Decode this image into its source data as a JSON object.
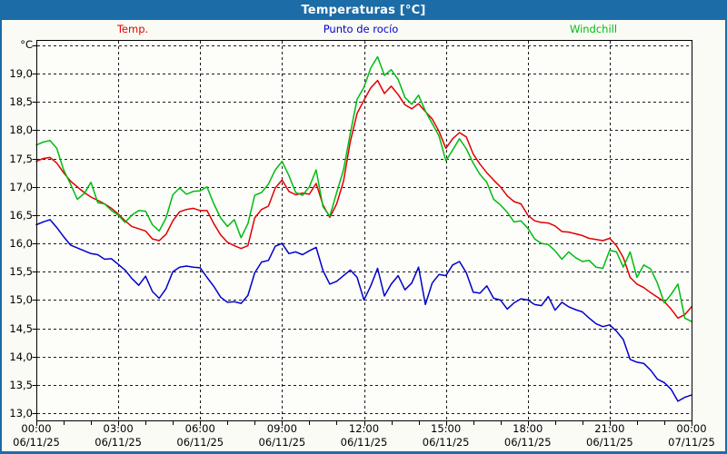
{
  "window": {
    "title": "Temperaturas [°C]"
  },
  "colors": {
    "titlebar": "#1c6ca7",
    "window_border": "#1c6ca7",
    "content_background": "#fafbf4",
    "plot_background": "#fdfdfa",
    "grid": "#1a1a1a",
    "axis": "#000000",
    "temp": "#e00000",
    "dew_point": "#0000cc",
    "windchill": "#00bb11"
  },
  "chart_data": {
    "type": "line",
    "title": "Temperaturas [°C]",
    "y_axis_unit": "°C",
    "legend_position": "top",
    "grid": true,
    "xlim_hours": [
      0,
      24
    ],
    "ylim": [
      12.87,
      19.6
    ],
    "y_grid_min": 13.0,
    "y_grid_max": 19.5,
    "y_grid_step": 0.5,
    "x_grid_step_hours": 3,
    "x_minor_tick_hours": 1,
    "y_ticks": [
      {
        "value": 13.0,
        "label": "13,0"
      },
      {
        "value": 13.5,
        "label": "13,5"
      },
      {
        "value": 14.0,
        "label": "14,0"
      },
      {
        "value": 14.5,
        "label": "14,5"
      },
      {
        "value": 15.0,
        "label": "15,0"
      },
      {
        "value": 15.5,
        "label": "15,5"
      },
      {
        "value": 16.0,
        "label": "16,0"
      },
      {
        "value": 16.5,
        "label": "16,5"
      },
      {
        "value": 17.0,
        "label": "17,0"
      },
      {
        "value": 17.5,
        "label": "17,5"
      },
      {
        "value": 18.0,
        "label": "18,0"
      },
      {
        "value": 18.5,
        "label": "18,5"
      },
      {
        "value": 19.0,
        "label": "19,0"
      }
    ],
    "x_ticks": [
      {
        "hours": 0,
        "time": "00:00",
        "date": "06/11/25"
      },
      {
        "hours": 3,
        "time": "03:00",
        "date": "06/11/25"
      },
      {
        "hours": 6,
        "time": "06:00",
        "date": "06/11/25"
      },
      {
        "hours": 9,
        "time": "09:00",
        "date": "06/11/25"
      },
      {
        "hours": 12,
        "time": "12:00",
        "date": "06/11/25"
      },
      {
        "hours": 15,
        "time": "15:00",
        "date": "06/11/25"
      },
      {
        "hours": 18,
        "time": "18:00",
        "date": "06/11/25"
      },
      {
        "hours": 21,
        "time": "21:00",
        "date": "06/11/25"
      },
      {
        "hours": 24,
        "time": "00:00",
        "date": "07/11/25"
      }
    ],
    "x_hours": [
      0,
      0.25,
      0.5,
      0.75,
      1,
      1.25,
      1.5,
      1.75,
      2,
      2.25,
      2.5,
      2.75,
      3,
      3.25,
      3.5,
      3.75,
      4,
      4.25,
      4.5,
      4.75,
      5,
      5.25,
      5.5,
      5.75,
      6,
      6.25,
      6.5,
      6.75,
      7,
      7.25,
      7.5,
      7.75,
      8,
      8.25,
      8.5,
      8.75,
      9,
      9.25,
      9.5,
      9.75,
      10,
      10.25,
      10.5,
      10.75,
      11,
      11.25,
      11.5,
      11.75,
      12,
      12.25,
      12.5,
      12.75,
      13,
      13.25,
      13.5,
      13.75,
      14,
      14.25,
      14.5,
      14.75,
      15,
      15.25,
      15.5,
      15.75,
      16,
      16.25,
      16.5,
      16.75,
      17,
      17.25,
      17.5,
      17.75,
      18,
      18.25,
      18.5,
      18.75,
      19,
      19.25,
      19.5,
      19.75,
      20,
      20.25,
      20.5,
      20.75,
      21,
      21.25,
      21.5,
      21.75,
      22,
      22.25,
      22.5,
      22.75,
      23,
      23.25,
      23.5,
      23.75,
      24
    ],
    "series": [
      {
        "id": "temp",
        "name": "Temp.",
        "color": "#e00000",
        "values": [
          17.45,
          17.5,
          17.52,
          17.42,
          17.25,
          17.1,
          17.0,
          16.9,
          16.82,
          16.76,
          16.7,
          16.62,
          16.52,
          16.4,
          16.3,
          16.26,
          16.22,
          16.08,
          16.05,
          16.16,
          16.4,
          16.56,
          16.6,
          16.62,
          16.58,
          16.58,
          16.35,
          16.15,
          16.02,
          15.96,
          15.91,
          15.96,
          16.45,
          16.6,
          16.66,
          16.98,
          17.12,
          16.92,
          16.86,
          16.89,
          16.87,
          17.06,
          16.68,
          16.46,
          16.7,
          17.1,
          17.8,
          18.3,
          18.53,
          18.75,
          18.88,
          18.65,
          18.78,
          18.63,
          18.45,
          18.38,
          18.47,
          18.33,
          18.2,
          17.98,
          17.68,
          17.85,
          17.96,
          17.88,
          17.58,
          17.4,
          17.25,
          17.12,
          17.0,
          16.84,
          16.74,
          16.7,
          16.5,
          16.4,
          16.37,
          16.36,
          16.31,
          16.21,
          16.2,
          16.17,
          16.14,
          16.09,
          16.07,
          16.05,
          16.09,
          15.96,
          15.75,
          15.4,
          15.28,
          15.22,
          15.13,
          15.05,
          14.97,
          14.84,
          14.68,
          14.74,
          14.88
        ]
      },
      {
        "id": "dew-point",
        "name": "Punto de rocío",
        "color": "#0000cc",
        "values": [
          16.33,
          16.38,
          16.42,
          16.28,
          16.12,
          15.97,
          15.92,
          15.87,
          15.82,
          15.8,
          15.72,
          15.73,
          15.63,
          15.53,
          15.38,
          15.26,
          15.42,
          15.15,
          15.03,
          15.2,
          15.5,
          15.58,
          15.6,
          15.58,
          15.57,
          15.4,
          15.24,
          15.05,
          14.96,
          14.97,
          14.94,
          15.08,
          15.48,
          15.67,
          15.7,
          15.95,
          16.0,
          15.82,
          15.85,
          15.8,
          15.87,
          15.93,
          15.52,
          15.28,
          15.33,
          15.43,
          15.53,
          15.4,
          15.0,
          15.25,
          15.56,
          15.07,
          15.28,
          15.43,
          15.18,
          15.3,
          15.58,
          14.92,
          15.3,
          15.45,
          15.43,
          15.62,
          15.68,
          15.48,
          15.14,
          15.12,
          15.25,
          15.03,
          15.0,
          14.84,
          14.95,
          15.02,
          15.0,
          14.92,
          14.9,
          15.06,
          14.82,
          14.96,
          14.88,
          14.83,
          14.79,
          14.68,
          14.58,
          14.53,
          14.56,
          14.45,
          14.3,
          13.95,
          13.9,
          13.88,
          13.76,
          13.6,
          13.54,
          13.42,
          13.21,
          13.28,
          13.32
        ]
      },
      {
        "id": "windchill",
        "name": "Windchill",
        "color": "#00bb11",
        "values": [
          17.74,
          17.79,
          17.82,
          17.68,
          17.3,
          17.05,
          16.78,
          16.88,
          17.08,
          16.72,
          16.7,
          16.58,
          16.5,
          16.37,
          16.5,
          16.58,
          16.57,
          16.33,
          16.22,
          16.45,
          16.86,
          16.98,
          16.87,
          16.92,
          16.93,
          17.0,
          16.7,
          16.45,
          16.3,
          16.42,
          16.1,
          16.35,
          16.85,
          16.9,
          17.05,
          17.3,
          17.45,
          17.2,
          16.9,
          16.85,
          17.0,
          17.3,
          16.65,
          16.48,
          16.9,
          17.3,
          17.95,
          18.55,
          18.76,
          19.1,
          19.3,
          18.97,
          19.07,
          18.9,
          18.58,
          18.46,
          18.62,
          18.34,
          18.12,
          17.9,
          17.46,
          17.65,
          17.85,
          17.67,
          17.42,
          17.22,
          17.08,
          16.78,
          16.68,
          16.55,
          16.38,
          16.4,
          16.27,
          16.08,
          16.0,
          15.98,
          15.87,
          15.72,
          15.85,
          15.75,
          15.68,
          15.7,
          15.58,
          15.56,
          15.88,
          15.85,
          15.58,
          15.85,
          15.4,
          15.62,
          15.55,
          15.3,
          14.95,
          15.1,
          15.28,
          14.68,
          14.62
        ]
      }
    ]
  }
}
